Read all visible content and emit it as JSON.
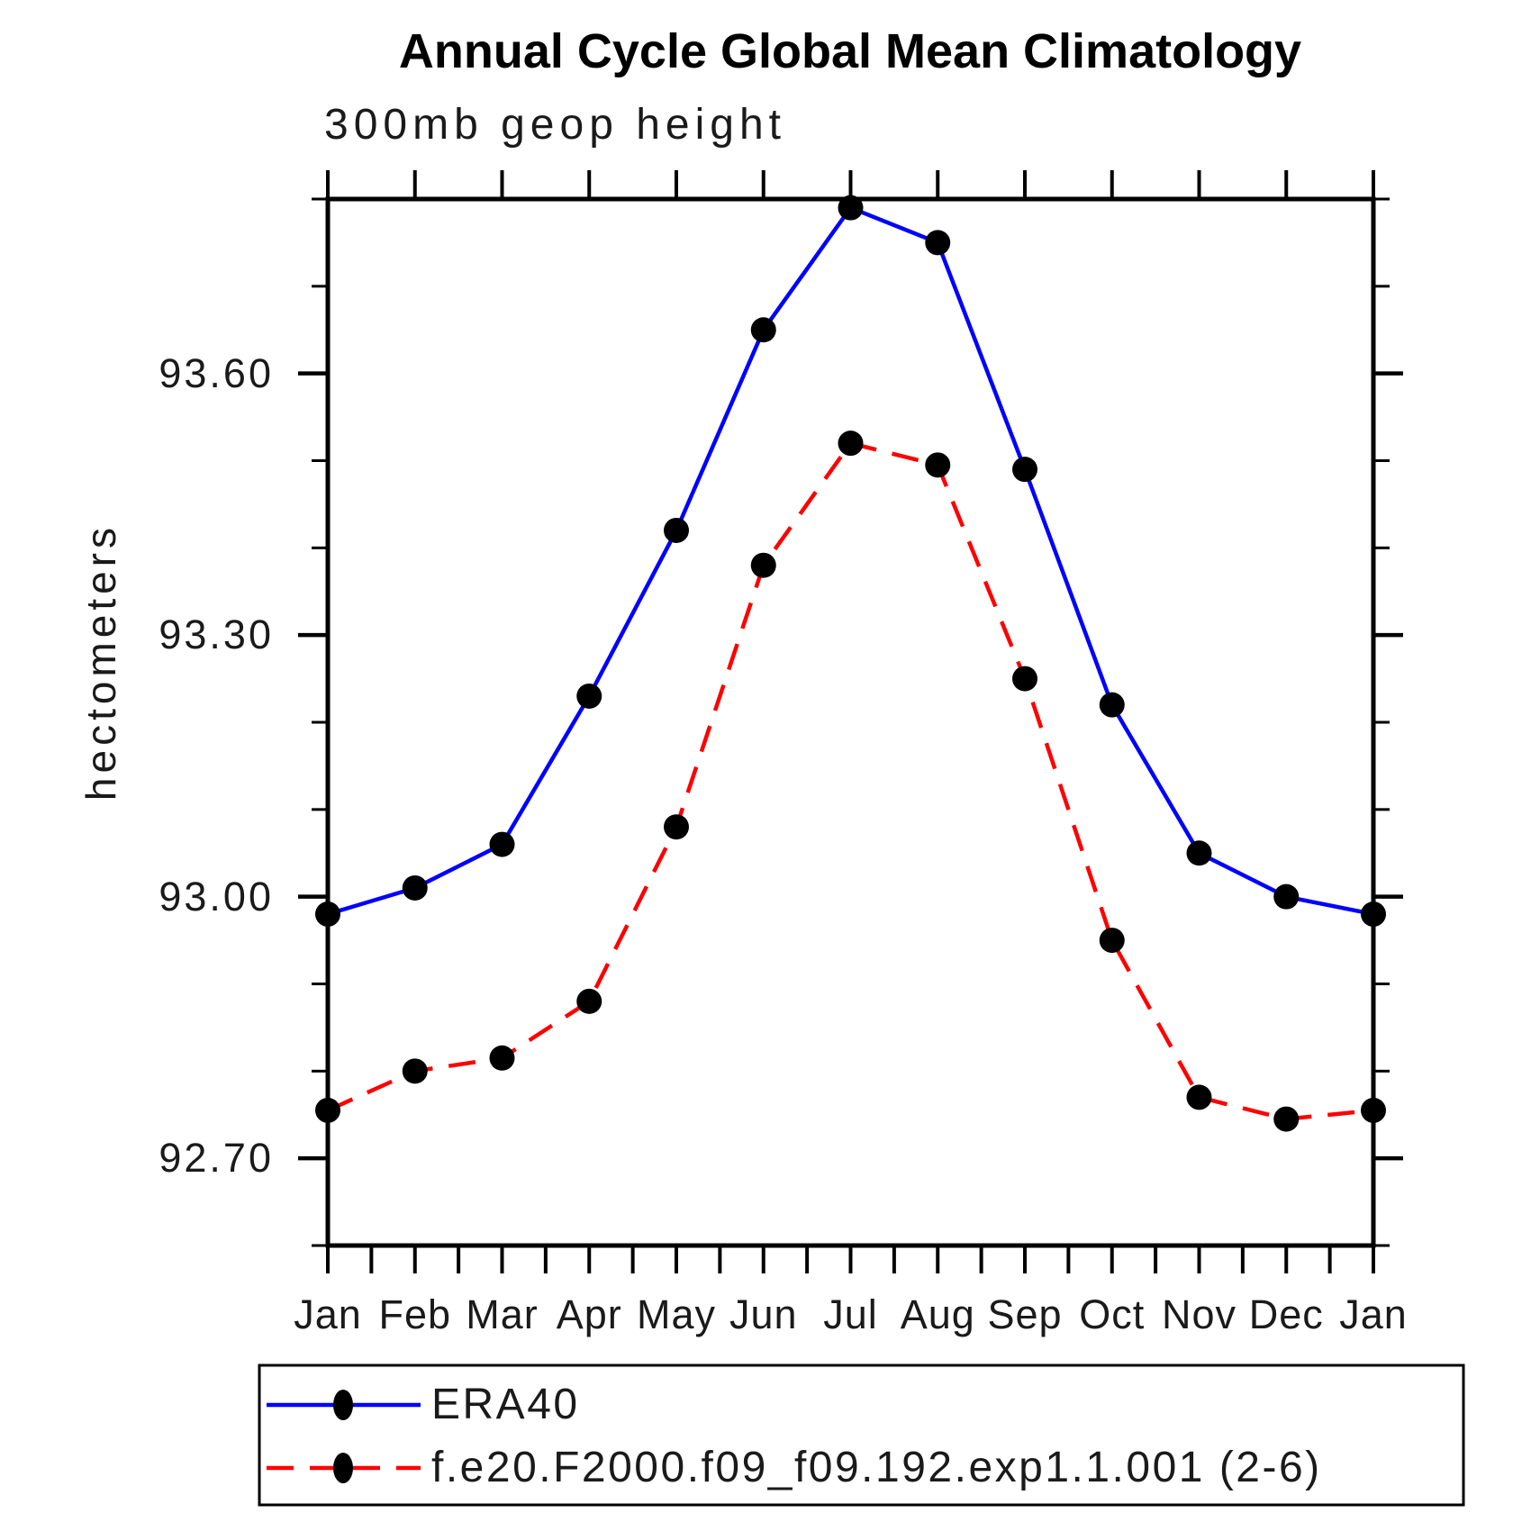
{
  "header": {
    "title": "Annual Cycle Global Mean Climatology",
    "subtitle": "300mb geop height"
  },
  "y_axis": {
    "label": "hectometers",
    "range": [
      92.6,
      93.8
    ],
    "major_ticks": [
      {
        "value": 93.6,
        "label": "93.60"
      },
      {
        "value": 93.3,
        "label": "93.30"
      },
      {
        "value": 93.0,
        "label": "93.00"
      },
      {
        "value": 92.7,
        "label": "92.70"
      }
    ],
    "minor_step": 0.1
  },
  "x_axis": {
    "labels": [
      "Jan",
      "Feb",
      "Mar",
      "Apr",
      "May",
      "Jun",
      "Jul",
      "Aug",
      "Sep",
      "Oct",
      "Nov",
      "Dec",
      "Jan"
    ],
    "minor_ticks_per_month": 2
  },
  "legend": {
    "entries": [
      {
        "label": "ERA40",
        "color": "#0000ff",
        "line_style": "solid",
        "marker": "filled-circle"
      },
      {
        "label": "f.e20.F2000.f09_f09.192.exp1.1.001 (2-6)",
        "color": "#ff0000",
        "line_style": "dashed",
        "marker": "filled-circle"
      }
    ]
  },
  "colors": {
    "era40_line": "#0000ff",
    "model_line": "#ff0000",
    "marker": "#000000",
    "axis": "#000000"
  },
  "chart_data": {
    "type": "line",
    "title": "Annual Cycle Global Mean Climatology",
    "subtitle": "300mb geop height",
    "ylabel": "hectometers",
    "ylim": [
      92.6,
      93.8
    ],
    "y_major_ticks": [
      92.7,
      93.0,
      93.3,
      93.6
    ],
    "y_minor_step": 0.1,
    "grid": false,
    "legend_position": "bottom",
    "categories": [
      "Jan",
      "Feb",
      "Mar",
      "Apr",
      "May",
      "Jun",
      "Jul",
      "Aug",
      "Sep",
      "Oct",
      "Nov",
      "Dec",
      "Jan"
    ],
    "series": [
      {
        "name": "ERA40",
        "color": "#0000ff",
        "line_style": "solid",
        "marker": "filled-circle",
        "values": [
          92.98,
          93.01,
          93.06,
          93.23,
          93.42,
          93.65,
          93.79,
          93.75,
          93.49,
          93.22,
          93.05,
          93.0,
          92.98
        ]
      },
      {
        "name": "f.e20.F2000.f09_f09.192.exp1.1.001 (2-6)",
        "color": "#ff0000",
        "line_style": "dashed",
        "marker": "filled-circle",
        "values": [
          92.755,
          92.8,
          92.815,
          92.88,
          93.08,
          93.38,
          93.52,
          93.495,
          93.25,
          92.95,
          92.77,
          92.745,
          92.755
        ]
      }
    ]
  }
}
